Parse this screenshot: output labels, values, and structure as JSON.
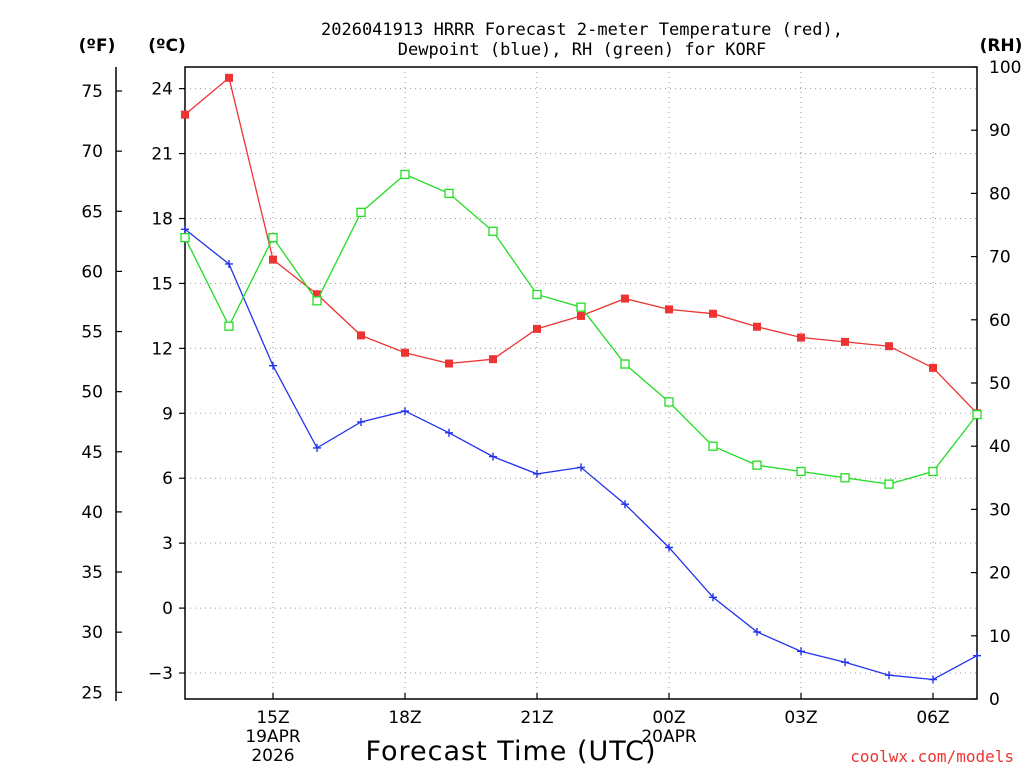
{
  "chart_data": {
    "type": "line",
    "title_line1": "2026041913 HRRR Forecast 2-meter Temperature (red),",
    "title_line2": "Dewpoint (blue), RH (green) for KORF",
    "xlabel": "Forecast Time (UTC)",
    "credit": "coolwx.com/models",
    "units": {
      "left_outer": "(ºF)",
      "left_inner": "(ºC)",
      "right": "(RH)"
    },
    "x_range": [
      13,
      31
    ],
    "x_ticks": [
      {
        "x": 15,
        "label": "15Z",
        "sub1": "19APR",
        "sub2": "2026"
      },
      {
        "x": 18,
        "label": "18Z"
      },
      {
        "x": 21,
        "label": "21Z"
      },
      {
        "x": 24,
        "label": "00Z",
        "sub1": "20APR"
      },
      {
        "x": 27,
        "label": "03Z"
      },
      {
        "x": 30,
        "label": "06Z"
      }
    ],
    "celsius_range": [
      -4.2,
      25
    ],
    "celsius_ticks": [
      -3,
      0,
      3,
      6,
      9,
      12,
      15,
      18,
      21,
      24
    ],
    "fahrenheit_ticks": [
      25,
      30,
      35,
      40,
      45,
      50,
      55,
      60,
      65,
      70,
      75
    ],
    "rh_range": [
      0,
      100
    ],
    "rh_ticks": [
      0,
      10,
      20,
      30,
      40,
      50,
      60,
      70,
      80,
      90,
      100
    ],
    "x": [
      13,
      14,
      15,
      16,
      17,
      18,
      19,
      20,
      21,
      22,
      23,
      24,
      25,
      26,
      27,
      28,
      29,
      30,
      31
    ],
    "series": [
      {
        "name": "Temperature",
        "units": "C",
        "color": "#ee3333",
        "marker": "filled-square",
        "values": [
          22.8,
          24.5,
          16.1,
          14.5,
          12.6,
          11.8,
          11.3,
          11.5,
          12.9,
          13.5,
          14.3,
          13.8,
          13.6,
          13.0,
          12.5,
          12.3,
          12.1,
          11.1,
          9.0
        ]
      },
      {
        "name": "Dewpoint",
        "units": "C",
        "color": "#2233ee",
        "marker": "plus",
        "values": [
          17.5,
          15.9,
          11.2,
          7.4,
          8.6,
          9.1,
          8.1,
          7.0,
          6.2,
          6.5,
          4.8,
          2.8,
          0.5,
          -1.1,
          -2.0,
          -2.5,
          -3.1,
          -3.3,
          -2.2
        ]
      },
      {
        "name": "RH",
        "units": "%",
        "color": "#22dd22",
        "marker": "open-square",
        "values": [
          73,
          59,
          73,
          63,
          77,
          83,
          80,
          74,
          64,
          62,
          53,
          47,
          40,
          37,
          36,
          35,
          34,
          36,
          45
        ]
      }
    ]
  }
}
